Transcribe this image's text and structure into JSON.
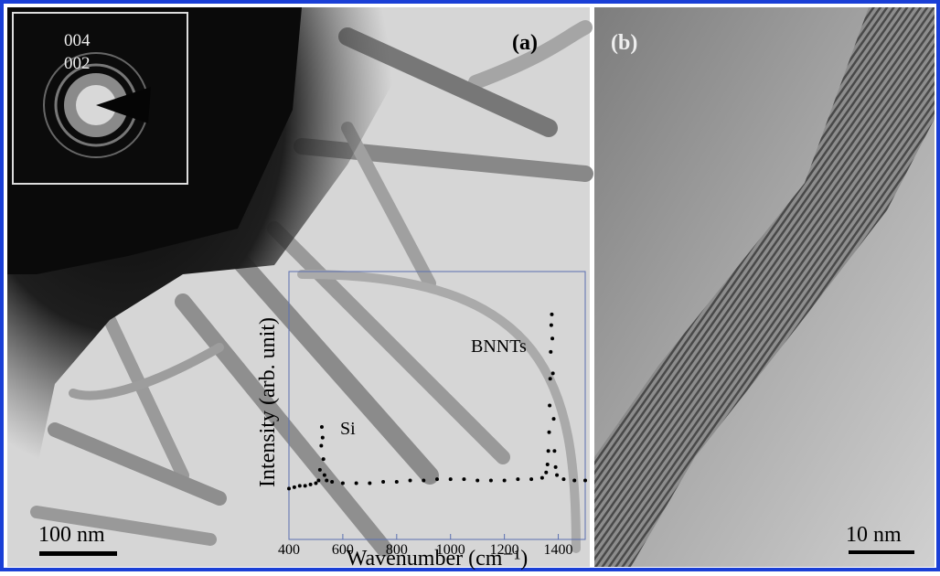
{
  "figure": {
    "panel_a_label": "(a)",
    "panel_b_label": "(b)",
    "saed_labels": [
      "004",
      "002"
    ],
    "scale_bar_a": "100 nm",
    "scale_bar_b": "10 nm"
  },
  "chart_data": {
    "type": "scatter",
    "xlabel": "Wavenumber (cm⁻¹)",
    "ylabel": "Intensity (arb. unit)",
    "annotations": [
      "Si",
      "BNNTs"
    ],
    "xlim": [
      400,
      1500
    ],
    "xticks": [
      400,
      600,
      800,
      1000,
      1200,
      1400
    ],
    "ylim": [
      0,
      100
    ],
    "color": "#000000",
    "x": [
      400,
      420,
      440,
      460,
      480,
      500,
      510,
      515,
      520,
      522,
      525,
      528,
      532,
      540,
      560,
      600,
      650,
      700,
      750,
      800,
      850,
      900,
      950,
      1000,
      1050,
      1100,
      1150,
      1200,
      1250,
      1300,
      1340,
      1355,
      1360,
      1363,
      1366,
      1368,
      1370,
      1372,
      1374,
      1376,
      1378,
      1380,
      1383,
      1386,
      1390,
      1395,
      1420,
      1460,
      1500
    ],
    "values": [
      19,
      19.5,
      20,
      20,
      20.5,
      21,
      22,
      26,
      35,
      42,
      38,
      30,
      24,
      22,
      21.5,
      21,
      21,
      21,
      21.5,
      21.5,
      22,
      22,
      22.5,
      22.5,
      22.5,
      22,
      22,
      22,
      22.5,
      22.5,
      23,
      25,
      28,
      33,
      40,
      50,
      60,
      70,
      80,
      84,
      75,
      62,
      45,
      33,
      27,
      24,
      22.5,
      22,
      22
    ]
  }
}
